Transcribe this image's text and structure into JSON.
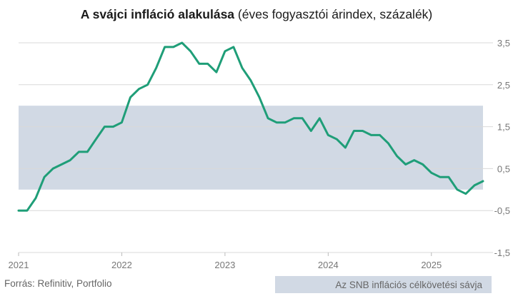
{
  "colors": {
    "line": "#1f9e78",
    "band": "#d1d9e4",
    "grid": "#d9d9d9",
    "text": "#777777"
  },
  "chart_data": {
    "type": "line",
    "title_bold": "A svájci infláció alakulása",
    "title_rest": " (éves fogyasztói árindex, százalék)",
    "xlabel": "",
    "ylabel": "",
    "y_axis_position": "right",
    "ylim": [
      -1.5,
      3.5
    ],
    "yticks": [
      {
        "value": 3.5,
        "label": "3,5"
      },
      {
        "value": 2.5,
        "label": "2,5"
      },
      {
        "value": 1.5,
        "label": "1,5"
      },
      {
        "value": 0.5,
        "label": "0,5"
      },
      {
        "value": -0.5,
        "label": "-0,5"
      },
      {
        "value": -1.5,
        "label": "-1,5"
      }
    ],
    "xlim": [
      "2021-01",
      "2025-07"
    ],
    "xticks": [
      {
        "value": "2021-01",
        "label": "2021"
      },
      {
        "value": "2022-01",
        "label": "2022"
      },
      {
        "value": "2023-01",
        "label": "2023"
      },
      {
        "value": "2024-01",
        "label": "2024"
      },
      {
        "value": "2025-01",
        "label": "2025"
      }
    ],
    "grid": true,
    "band": {
      "from": 0,
      "to": 2,
      "label": "Az SNB inflációs célkövetési sávja"
    },
    "series": [
      {
        "x": [
          "2021-01",
          "2021-02",
          "2021-03",
          "2021-04",
          "2021-05",
          "2021-06",
          "2021-07",
          "2021-08",
          "2021-09",
          "2021-10",
          "2021-11",
          "2021-12",
          "2022-01",
          "2022-02",
          "2022-03",
          "2022-04",
          "2022-05",
          "2022-06",
          "2022-07",
          "2022-08",
          "2022-09",
          "2022-10",
          "2022-11",
          "2022-12",
          "2023-01",
          "2023-02",
          "2023-03",
          "2023-04",
          "2023-05",
          "2023-06",
          "2023-07",
          "2023-08",
          "2023-09",
          "2023-10",
          "2023-11",
          "2023-12",
          "2024-01",
          "2024-02",
          "2024-03",
          "2024-04",
          "2024-05",
          "2024-06",
          "2024-07",
          "2024-08",
          "2024-09",
          "2024-10",
          "2024-11",
          "2024-12",
          "2025-01",
          "2025-02",
          "2025-03",
          "2025-04",
          "2025-05",
          "2025-06",
          "2025-07"
        ],
        "values": [
          -0.5,
          -0.5,
          -0.2,
          0.3,
          0.5,
          0.6,
          0.7,
          0.9,
          0.9,
          1.2,
          1.5,
          1.5,
          1.6,
          2.2,
          2.4,
          2.5,
          2.9,
          3.4,
          3.4,
          3.5,
          3.3,
          3.0,
          3.0,
          2.8,
          3.3,
          3.4,
          2.9,
          2.6,
          2.2,
          1.7,
          1.6,
          1.6,
          1.7,
          1.7,
          1.4,
          1.7,
          1.3,
          1.2,
          1.0,
          1.4,
          1.4,
          1.3,
          1.3,
          1.1,
          0.8,
          0.6,
          0.7,
          0.6,
          0.4,
          0.3,
          0.3,
          0.0,
          -0.1,
          0.1,
          0.2
        ]
      }
    ]
  },
  "source": "Forrás: Refinitiv, Portfolio"
}
